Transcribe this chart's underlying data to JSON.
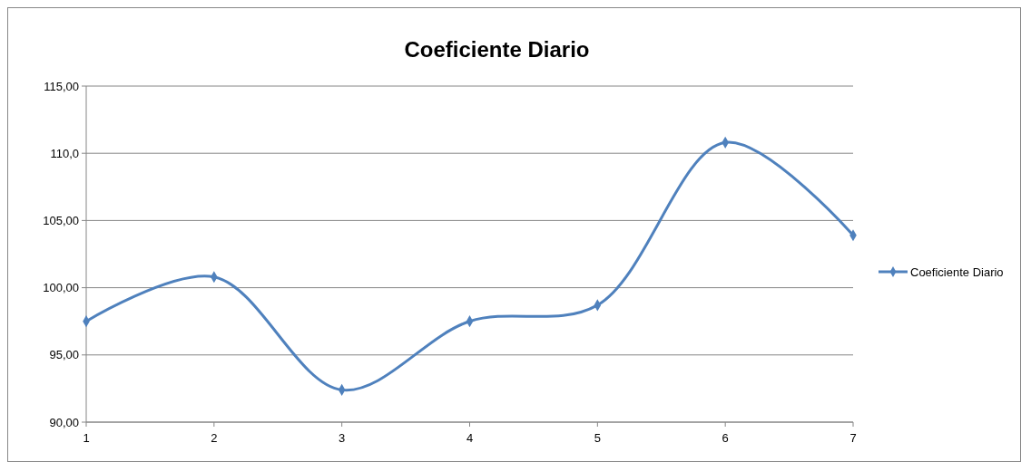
{
  "chart_data": {
    "type": "line",
    "title": "Coeficiente Diario",
    "x": [
      1,
      2,
      3,
      4,
      5,
      6,
      7
    ],
    "series": [
      {
        "name": "Coeficiente Diario",
        "color": "#4f81bd",
        "values": [
          97.5,
          100.8,
          92.4,
          97.5,
          98.7,
          110.8,
          103.9
        ]
      }
    ],
    "xlim": [
      1,
      7
    ],
    "xticks": [
      1,
      2,
      3,
      4,
      5,
      6,
      7
    ],
    "ylim": [
      90,
      115
    ],
    "yticks": [
      {
        "value": 90,
        "label": "90,00"
      },
      {
        "value": 95,
        "label": "95,00"
      },
      {
        "value": 100,
        "label": "100,00"
      },
      {
        "value": 105,
        "label": "105,00"
      },
      {
        "value": 110,
        "label": "110,0"
      },
      {
        "value": 115,
        "label": "115,00"
      }
    ],
    "grid": "y",
    "legend": "right",
    "marker": "diamond",
    "line_style": "solid"
  }
}
